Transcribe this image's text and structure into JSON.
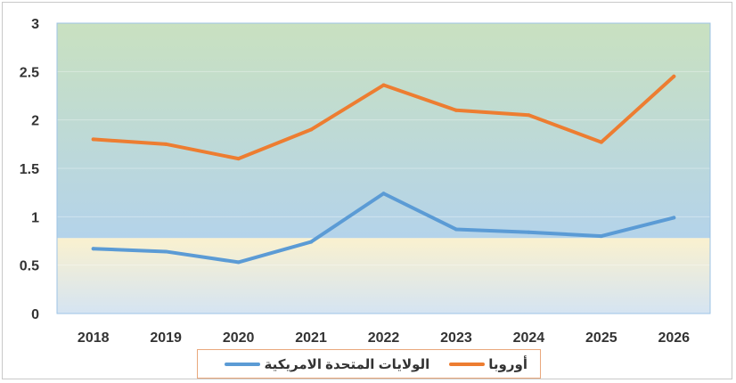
{
  "chart_data": {
    "type": "line",
    "title": "",
    "xlabel": "",
    "ylabel": "",
    "categories": [
      "2018",
      "2019",
      "2020",
      "2021",
      "2022",
      "2023",
      "2024",
      "2025",
      "2026"
    ],
    "ylim": [
      0,
      3
    ],
    "yticks": [
      "0",
      "0.5",
      "1",
      "1.5",
      "2",
      "2.5",
      "3"
    ],
    "background_bands": [
      {
        "from": 0,
        "to": 0.78,
        "top_color": "#faf1cf",
        "bottom_color": "#d5e4f2"
      },
      {
        "from": 0.78,
        "to": 3,
        "top_color": "#c9e1c0",
        "bottom_color": "#b4d3ea"
      }
    ],
    "series": [
      {
        "name": "أوروبا",
        "color": "#ed7d31",
        "values": [
          1.8,
          1.75,
          1.6,
          1.9,
          2.36,
          2.1,
          2.05,
          1.77,
          2.45
        ]
      },
      {
        "name": "الولايات المتحدة الامريكية",
        "color": "#5b9bd5",
        "values": [
          0.67,
          0.64,
          0.53,
          0.74,
          1.24,
          0.87,
          0.84,
          0.8,
          0.99
        ]
      }
    ],
    "legend_position": "bottom"
  }
}
